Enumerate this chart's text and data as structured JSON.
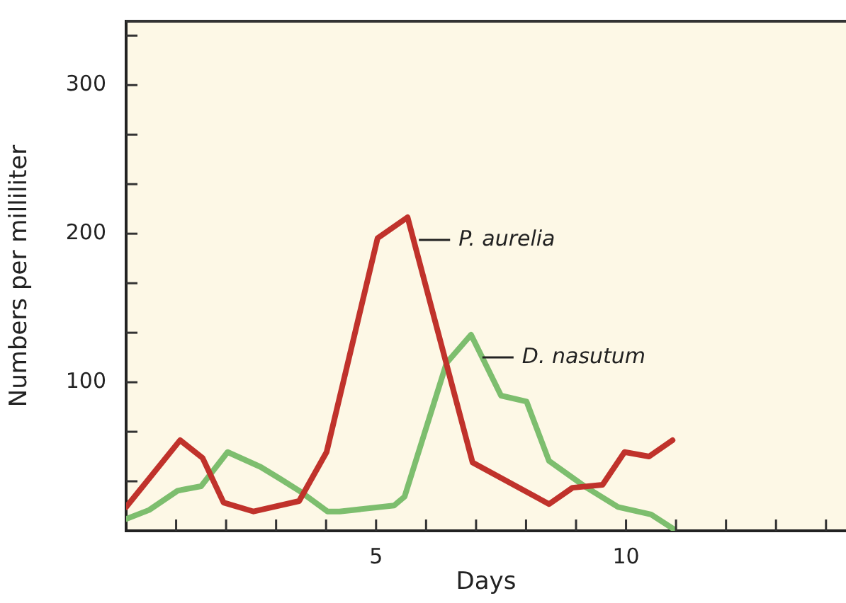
{
  "chart_data": {
    "type": "line",
    "xlabel": "Days",
    "ylabel": "Numbers per milliliter",
    "xlim": [
      0,
      14.4
    ],
    "ylim": [
      0,
      343
    ],
    "xticks": [
      {
        "value": 1,
        "label": null
      },
      {
        "value": 2,
        "label": null
      },
      {
        "value": 3,
        "label": null
      },
      {
        "value": 4,
        "label": null
      },
      5,
      {
        "value": 6,
        "label": null
      },
      {
        "value": 7,
        "label": null
      },
      {
        "value": 8,
        "label": null
      },
      {
        "value": 9,
        "label": null
      },
      10,
      {
        "value": 11,
        "label": null
      },
      {
        "value": 12,
        "label": null
      },
      {
        "value": 13,
        "label": null
      },
      {
        "value": 14,
        "label": null
      }
    ],
    "yticks": [
      {
        "value": 33.33,
        "label": null
      },
      {
        "value": 66.67,
        "label": null
      },
      100,
      {
        "value": 133.33,
        "label": null
      },
      {
        "value": 166.67,
        "label": null
      },
      200,
      {
        "value": 233.33,
        "label": null
      },
      {
        "value": 266.67,
        "label": null
      },
      300,
      {
        "value": 333.33,
        "label": null
      }
    ],
    "grid": false,
    "legend": false,
    "marker": "none",
    "line_style": "solid",
    "series": [
      {
        "name": "P. aurelia",
        "color": "#c0322b",
        "x": [
          0,
          1.08,
          1.53,
          1.95,
          2.55,
          3.46,
          4.01,
          5.03,
          5.63,
          6.93,
          8.46,
          8.93,
          9.53,
          9.97,
          10.46,
          10.93
        ],
        "values": [
          16,
          61,
          49,
          19,
          13,
          20,
          53,
          197,
          211,
          46,
          18,
          29,
          31,
          53,
          50,
          61
        ]
      },
      {
        "name": "D. nasutum",
        "color": "#7dbe6e",
        "x": [
          0,
          0.46,
          1.03,
          1.5,
          2.03,
          2.69,
          3.08,
          3.46,
          4.03,
          4.27,
          5.36,
          5.57,
          6.41,
          6.9,
          7.5,
          8.01,
          8.46,
          9.17,
          9.84,
          10.5,
          10.96
        ],
        "values": [
          8,
          14,
          27,
          30,
          53,
          43,
          35,
          27,
          13,
          13,
          17,
          23,
          113,
          132,
          91,
          87,
          47,
          30,
          16,
          11,
          1
        ]
      }
    ]
  }
}
